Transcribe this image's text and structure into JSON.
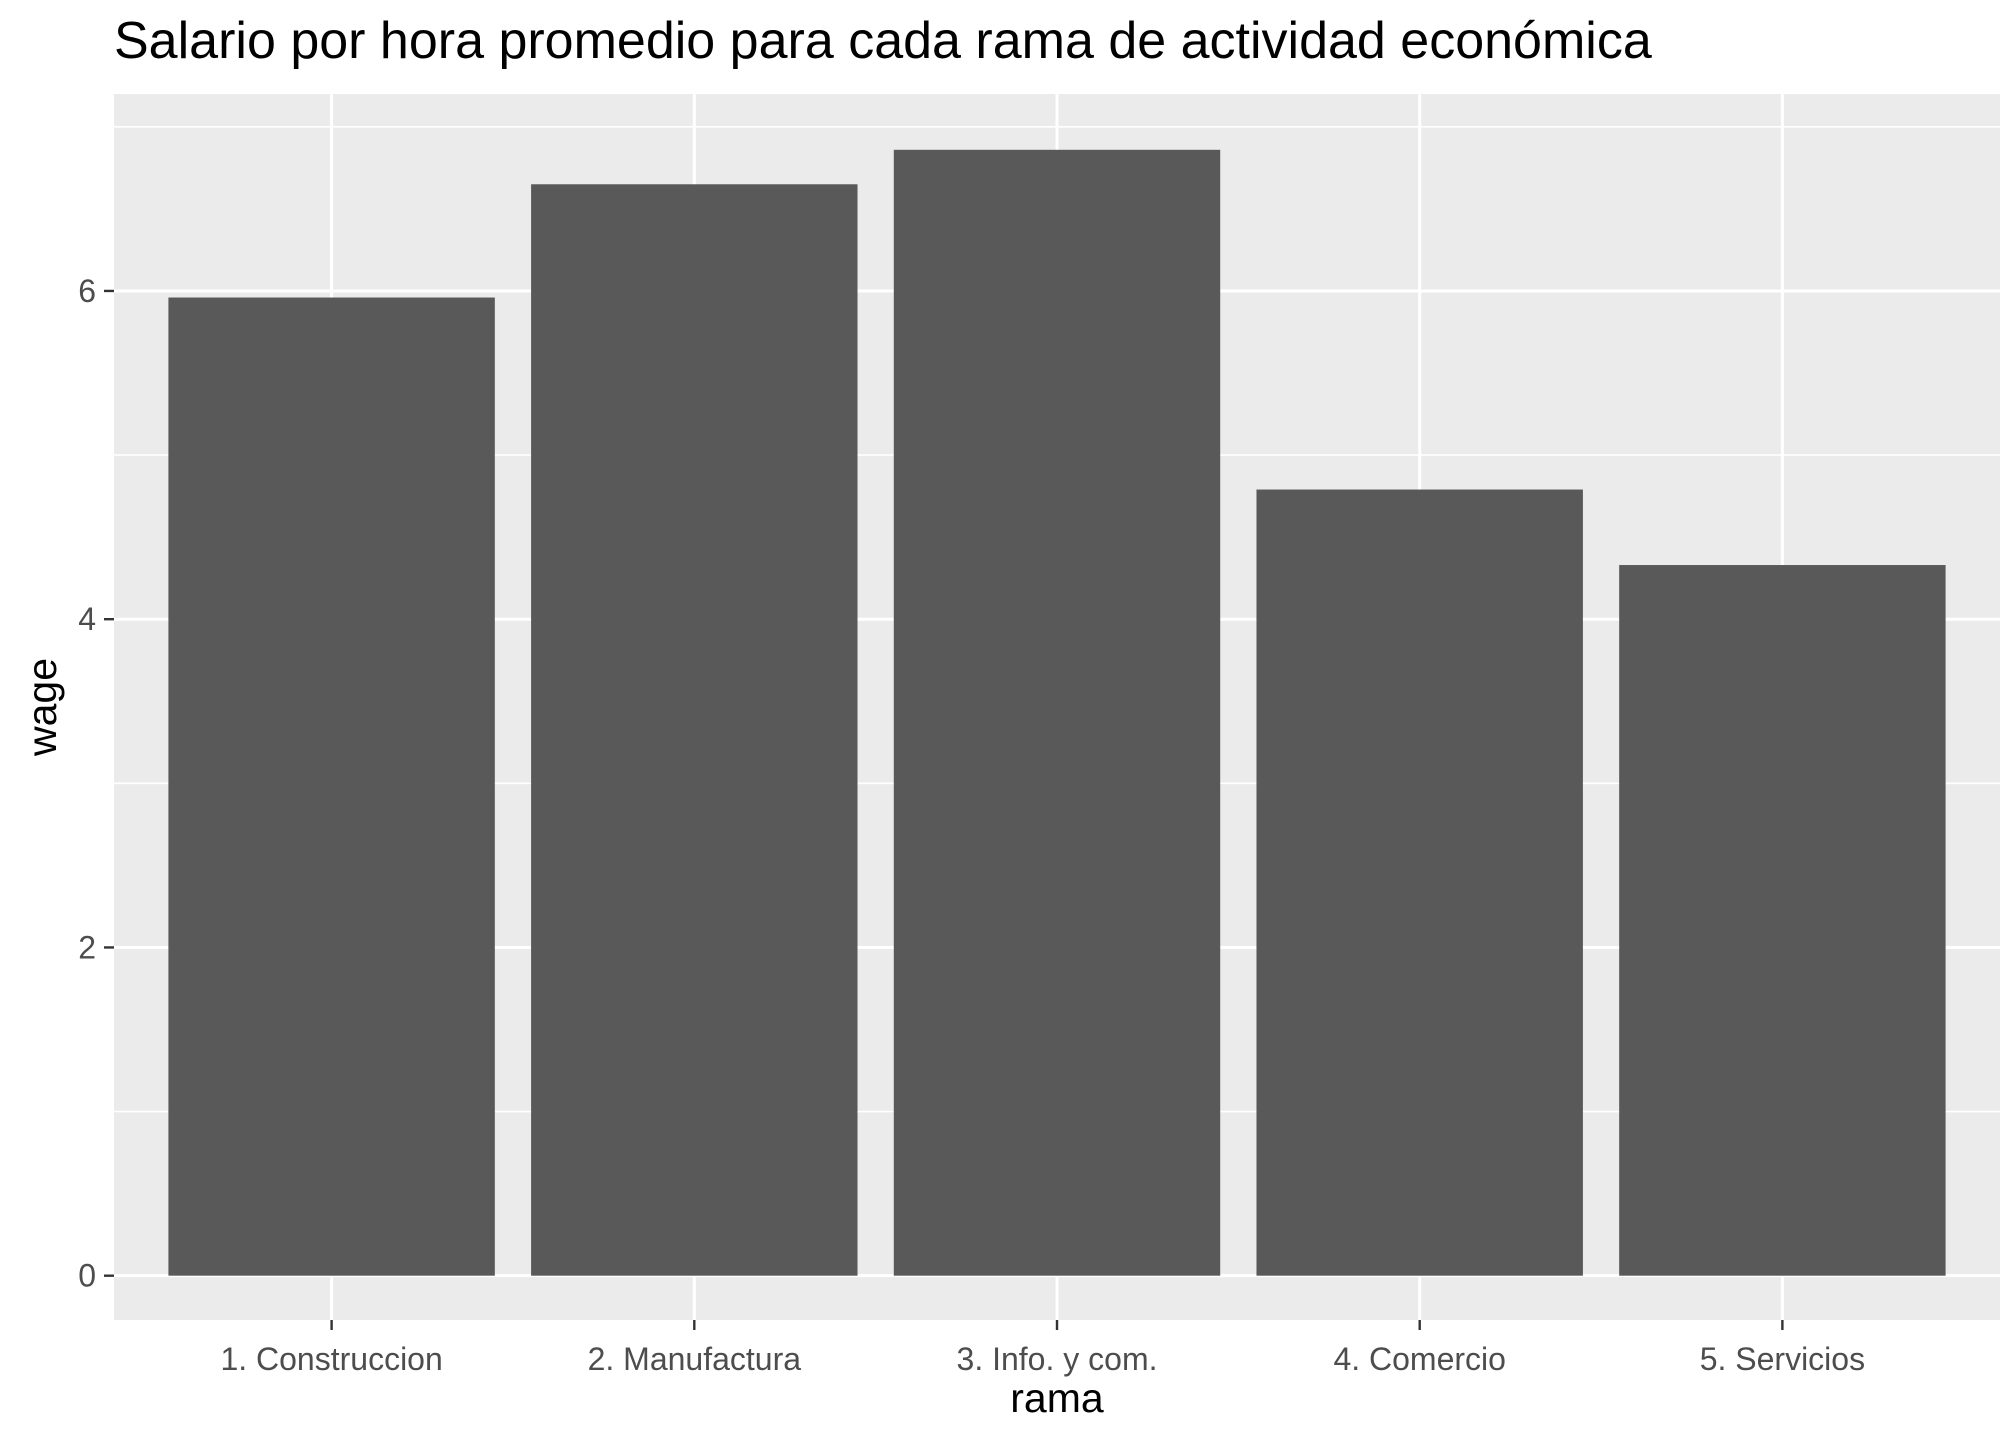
{
  "chart_data": {
    "type": "bar",
    "title": "Salario por hora promedio para cada rama de actividad económica",
    "xlabel": "rama",
    "ylabel": "wage",
    "categories": [
      "1. Construccion",
      "2. Manufactura",
      "3. Info. y com.",
      "4. Comercio",
      "5. Servicios"
    ],
    "values": [
      5.96,
      6.65,
      6.86,
      4.79,
      4.33
    ],
    "ylim": [
      -0.27,
      7.2
    ],
    "yticks": [
      0,
      2,
      4,
      6
    ],
    "ytick_labels": [
      "0",
      "2",
      "4",
      "6"
    ],
    "grid": true,
    "colors": {
      "bar": "#595959",
      "panel_background": "#ebebeb",
      "grid_line": "#ffffff",
      "tick_label": "#4d4d4d",
      "axis_tick": "#333333"
    }
  }
}
